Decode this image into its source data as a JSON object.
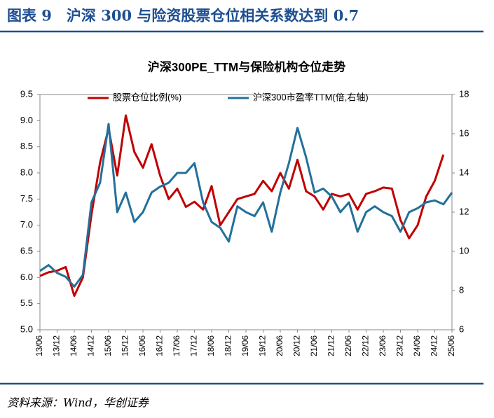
{
  "header": "图表 9　沪深 300 与险资股票仓位相关系数达到 0.7",
  "source": "资料来源：Wind，华创证券",
  "chart_data": {
    "type": "line",
    "title": "沪深300PE_TTM与保险机构仓位走势",
    "categories": [
      "13/06",
      null,
      "13/12",
      null,
      "14/06",
      null,
      "14/12",
      null,
      "15/06",
      null,
      "15/12",
      null,
      "16/06",
      null,
      "16/12",
      null,
      "17/06",
      null,
      "17/12",
      null,
      "18/06",
      null,
      "18/12",
      null,
      "19/06",
      null,
      "19/12",
      null,
      "20/06",
      null,
      "20/12",
      null,
      "21/06",
      null,
      "21/12",
      null,
      "22/06",
      null,
      "22/12",
      null,
      "23/06",
      null,
      "23/12",
      null,
      "24/06",
      null,
      "24/12",
      null,
      "25/06"
    ],
    "series": [
      {
        "name": "股票仓位比例(%)",
        "color": "#c00000",
        "axis": "y",
        "values": [
          6.03,
          6.1,
          6.13,
          6.2,
          5.65,
          6.0,
          7.2,
          8.2,
          8.85,
          7.95,
          9.1,
          8.4,
          8.1,
          8.55,
          7.95,
          7.5,
          7.7,
          7.35,
          7.45,
          7.3,
          7.75,
          7.0,
          7.25,
          7.5,
          7.55,
          7.6,
          7.85,
          7.65,
          8.0,
          7.7,
          8.25,
          7.65,
          7.55,
          7.3,
          7.6,
          7.55,
          7.6,
          7.3,
          7.6,
          7.65,
          7.72,
          7.7,
          7.1,
          6.75,
          7.0,
          7.55,
          7.85,
          8.35,
          null
        ]
      },
      {
        "name": "沪深300市盈率TTM(倍,右轴)",
        "color": "#23709a",
        "axis": "y2",
        "values": [
          9.0,
          9.3,
          8.9,
          8.7,
          8.2,
          8.8,
          12.5,
          13.5,
          16.5,
          12.0,
          13.0,
          11.5,
          12.0,
          13.0,
          13.3,
          13.5,
          14.0,
          14.0,
          14.5,
          12.5,
          11.5,
          11.2,
          10.5,
          12.3,
          12.0,
          11.8,
          12.5,
          11.0,
          13.0,
          14.5,
          16.3,
          14.8,
          13.0,
          13.2,
          12.8,
          12.0,
          12.5,
          11.0,
          12.0,
          12.3,
          12.0,
          11.8,
          11.0,
          12.0,
          12.2,
          12.5,
          12.6,
          12.4,
          13.0
        ]
      }
    ],
    "ylim": [
      5,
      9.5
    ],
    "yticks": [
      {
        "value": 5,
        "label": "5.0"
      },
      5.5,
      {
        "value": 6,
        "label": "6.0"
      },
      6.5,
      {
        "value": 7,
        "label": "7.0"
      },
      7.5,
      {
        "value": 8,
        "label": "8.0"
      },
      8.5,
      {
        "value": 9,
        "label": "9.0"
      },
      9.5
    ],
    "y2lim": [
      6,
      18
    ],
    "y2ticks": [
      6,
      8,
      10,
      12,
      14,
      16,
      18
    ],
    "legend": "top"
  }
}
